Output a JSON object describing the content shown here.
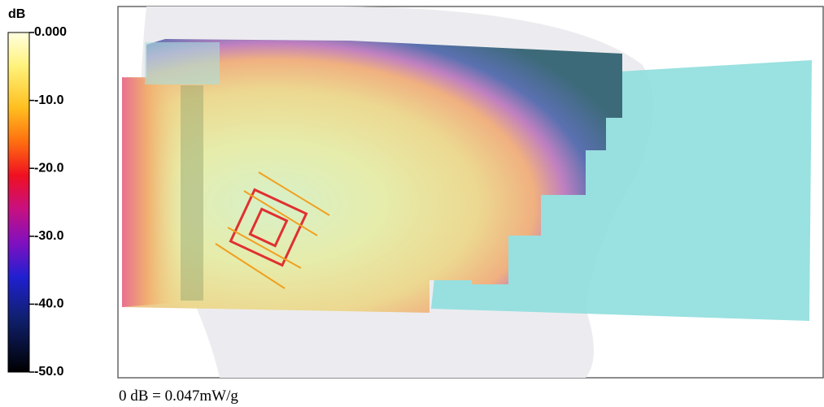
{
  "colorbar": {
    "unit": "dB",
    "lim": [
      -50,
      0
    ],
    "ticks": [
      {
        "value": 0,
        "label": "0.000"
      },
      {
        "value": -10,
        "label": "-10.0"
      },
      {
        "value": -20,
        "label": "-20.0"
      },
      {
        "value": -30,
        "label": "-30.0"
      },
      {
        "value": -40,
        "label": "-40.0"
      },
      {
        "value": -50,
        "label": "-50.0"
      }
    ]
  },
  "caption": "0 dB = 0.047mW/g"
}
